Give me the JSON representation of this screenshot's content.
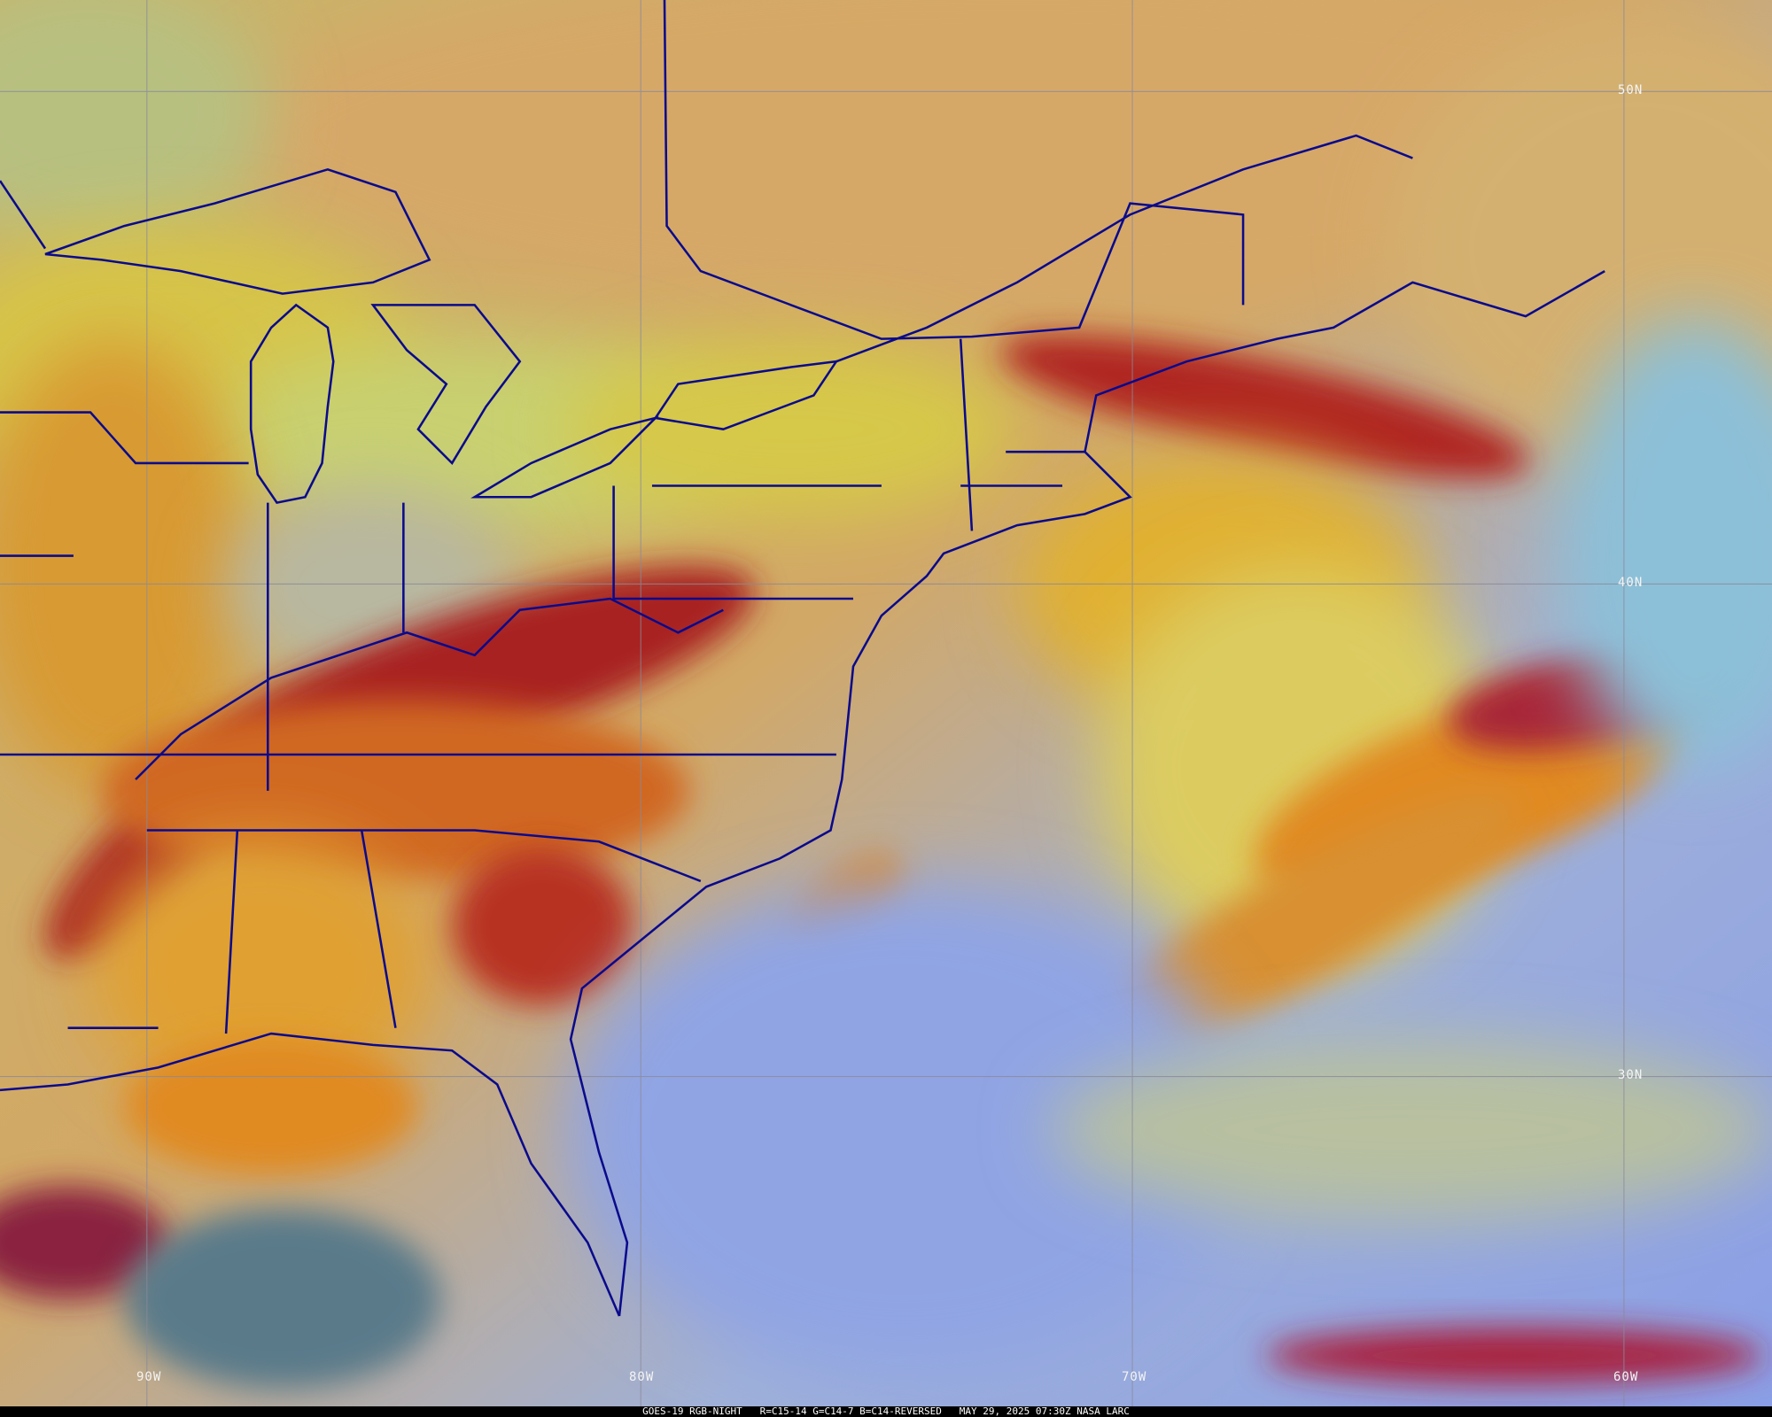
{
  "caption": {
    "satellite": "GOES-19 RGB-NIGHT",
    "channels": "R=C15-14 G=C14-7 B=C14-REVERSED",
    "datetime": "MAY 29, 2025 07:30Z",
    "source": "NASA LARC"
  },
  "grid_labels": {
    "lat": [
      "50N",
      "40N",
      "30N"
    ],
    "lon": [
      "90W",
      "80W",
      "70W",
      "60W"
    ]
  },
  "colors": {
    "boundary": "#0a0a8c",
    "gridline": "#8a8a9a",
    "high_cloud_red": "#a81e22",
    "mid_cloud_orange": "#e08a20",
    "low_cloud_yellow": "#d8c640",
    "clear_ocean_blue": "#8fa3e8",
    "clear_land_tan": "#d0a868"
  }
}
